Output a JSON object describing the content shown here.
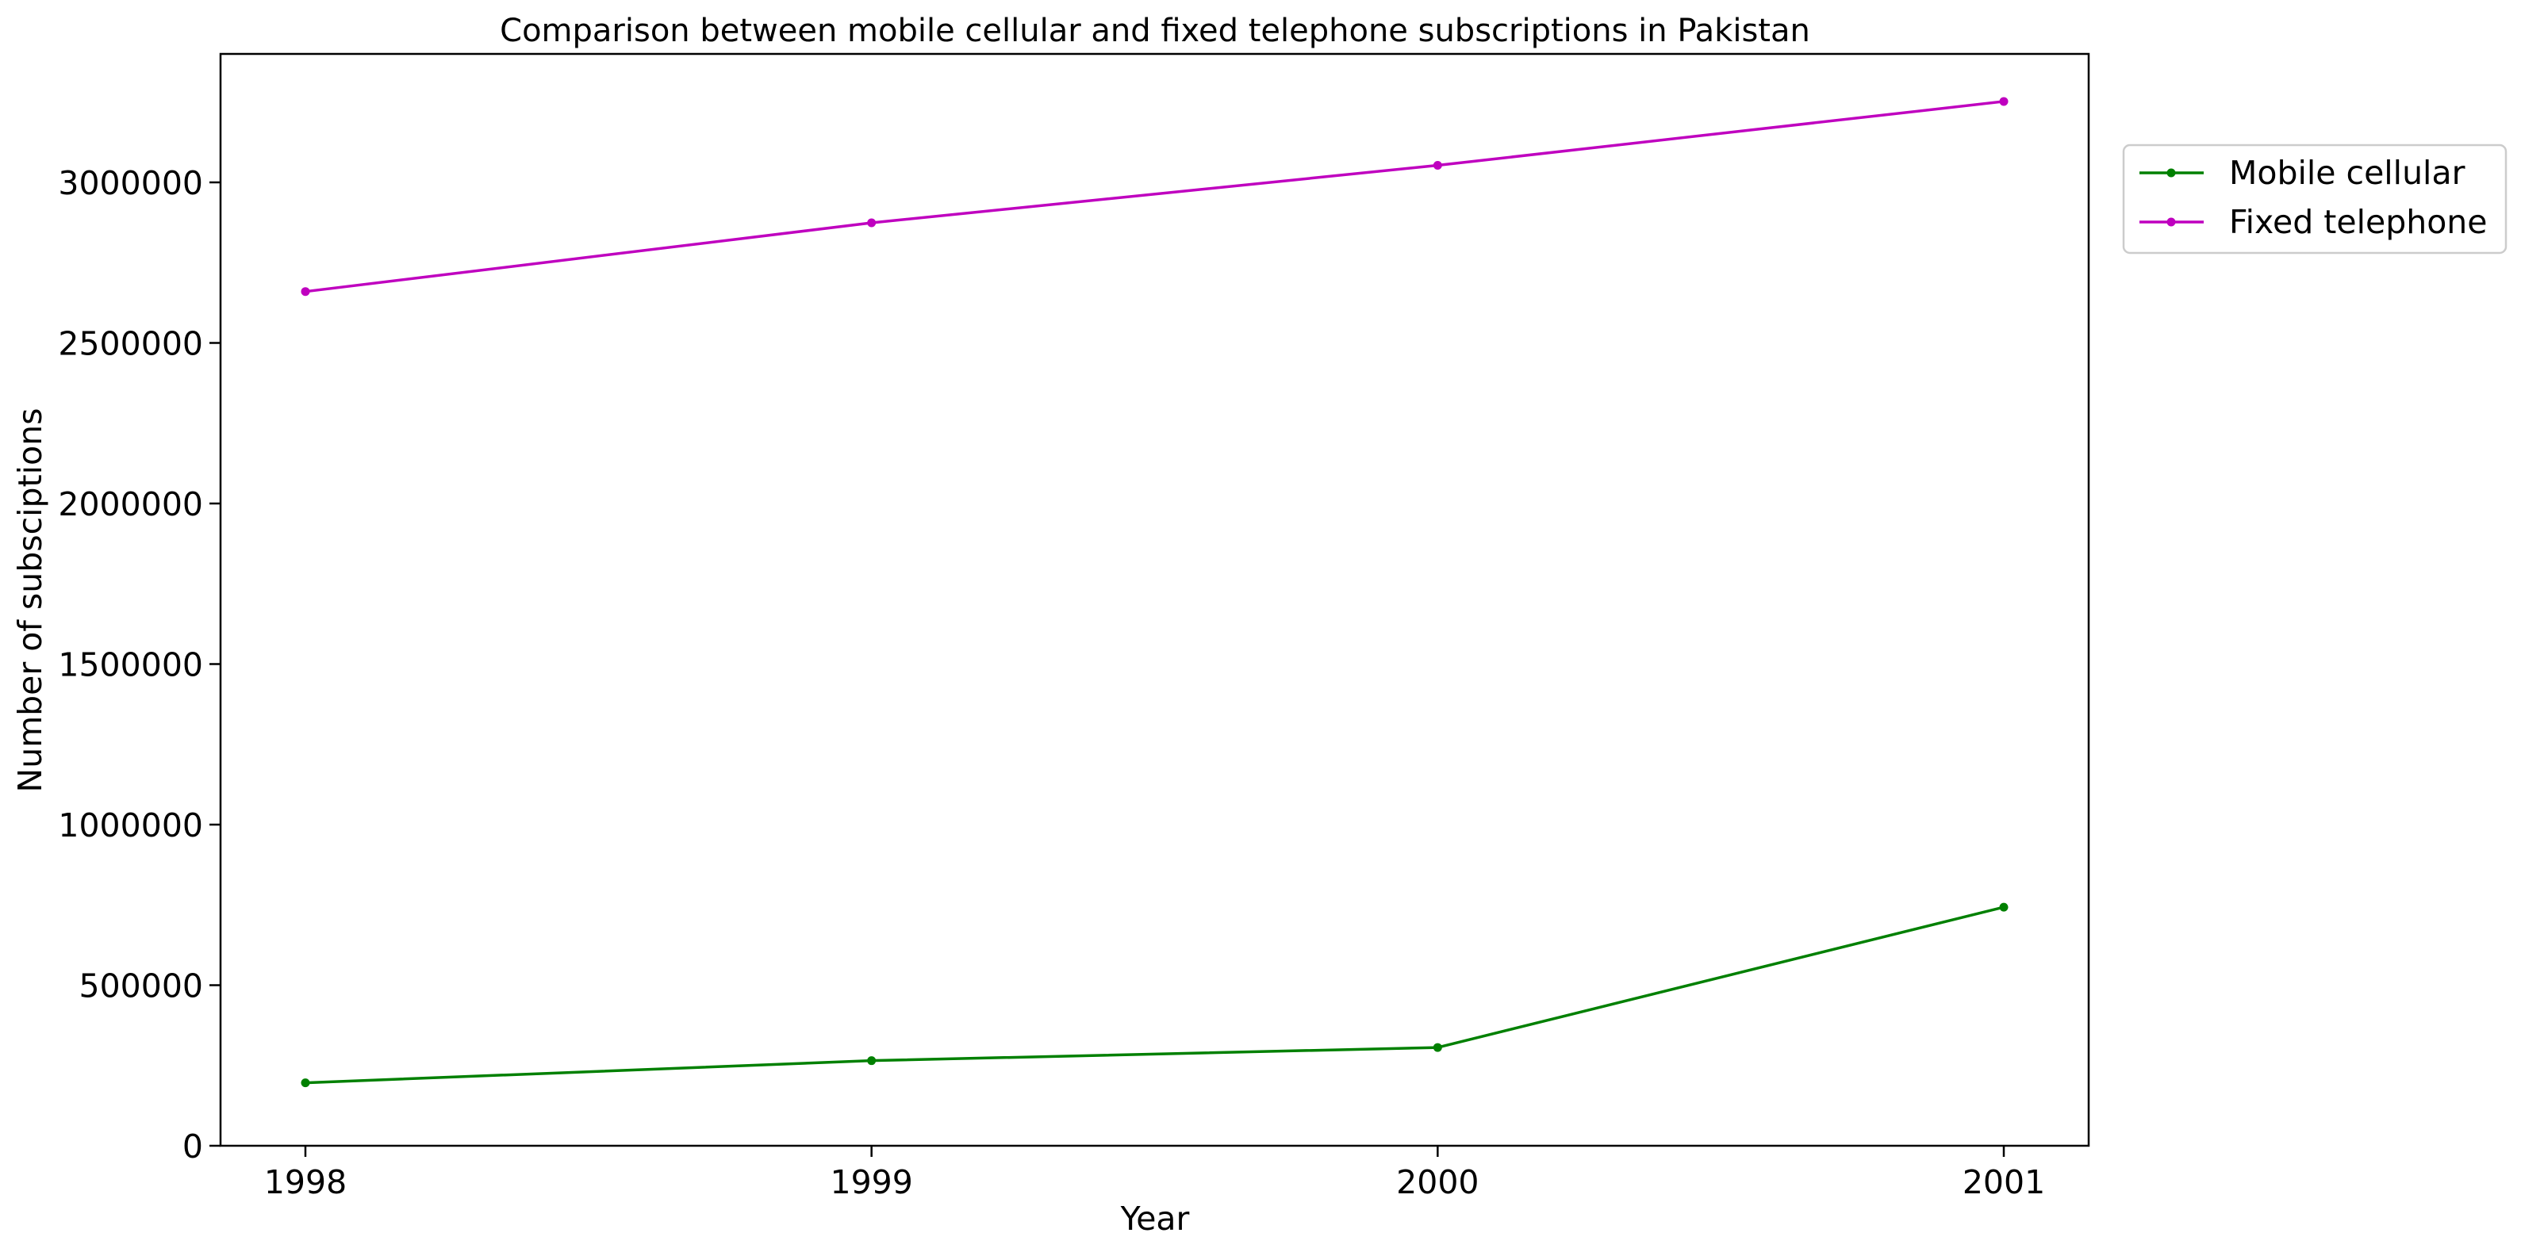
{
  "chart_data": {
    "type": "line",
    "title": "Comparison between mobile cellular and fixed telephone subscriptions in Pakistan",
    "xlabel": "Year",
    "ylabel": "Number of subsciptions",
    "x": [
      "1998",
      "1999",
      "2000",
      "2001"
    ],
    "ylim": [
      0,
      3400000
    ],
    "y_ticks": [
      0,
      500000,
      1000000,
      1500000,
      2000000,
      2500000,
      3000000
    ],
    "y_tick_labels": [
      "0",
      "500000",
      "1000000",
      "1500000",
      "2000000",
      "2500000",
      "3000000"
    ],
    "grid": false,
    "legend_position": "upper-right-outside",
    "series": [
      {
        "name": "Mobile cellular",
        "color": "#008000",
        "values": [
          196000,
          265000,
          306000,
          743000
        ]
      },
      {
        "name": "Fixed telephone",
        "color": "#bf00bf",
        "values": [
          2660000,
          2874000,
          3053000,
          3252000
        ]
      }
    ]
  }
}
